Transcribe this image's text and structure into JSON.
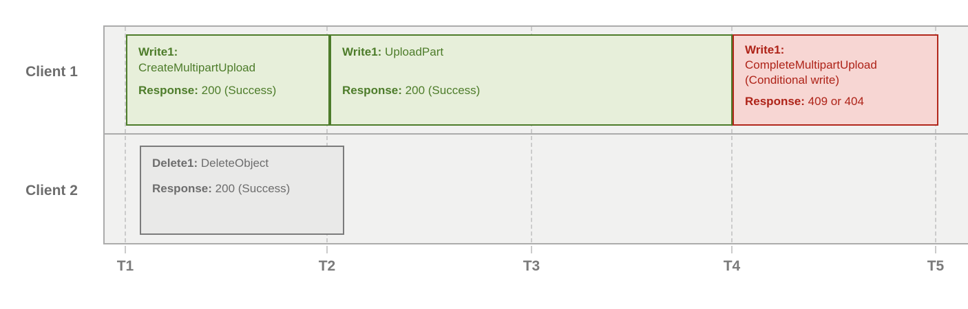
{
  "diagram": {
    "rows": [
      {
        "label": "Client 1"
      },
      {
        "label": "Client 2"
      }
    ],
    "timeline": {
      "ticks": [
        "T1",
        "T2",
        "T3",
        "T4",
        "T5"
      ]
    },
    "boxes": [
      {
        "row": "Client 1",
        "status": "success",
        "start": "T1",
        "end": "T2",
        "op_bold": "Write1:",
        "op_rest": "CreateMultipartUpload",
        "response_bold": "Response:",
        "response_rest": "200 (Success)"
      },
      {
        "row": "Client 1",
        "status": "success",
        "start": "T2",
        "end": "T4",
        "op_bold": "Write1:",
        "op_rest": "UploadPart",
        "response_bold": "Response:",
        "response_rest": "200 (Success)"
      },
      {
        "row": "Client 1",
        "status": "error",
        "start": "T4",
        "end": "T5",
        "op_bold": "Write1:",
        "op_rest": "CompleteMultipartUpload",
        "op_note": "(Conditional write)",
        "response_bold": "Response:",
        "response_rest": "409 or 404"
      },
      {
        "row": "Client 2",
        "status": "neutral",
        "start": "T1",
        "end": "T2",
        "op_bold": "Delete1:",
        "op_rest": "DeleteObject",
        "response_bold": "Response:",
        "response_rest": "200 (Success)"
      }
    ],
    "colors": {
      "success_text": "#4d7c2a",
      "success_fill": "#e7efda",
      "success_border": "#4d7c2a",
      "error_text": "#ae2318",
      "error_fill": "#f7d6d3",
      "error_border": "#b1271b",
      "neutral_text": "#6d6d6d",
      "neutral_fill": "#e9e9e8",
      "neutral_border": "#7b7b7b",
      "panel_fill": "#f1f1f0",
      "panel_border": "#ababab",
      "gridline": "#cbcbcb"
    }
  }
}
